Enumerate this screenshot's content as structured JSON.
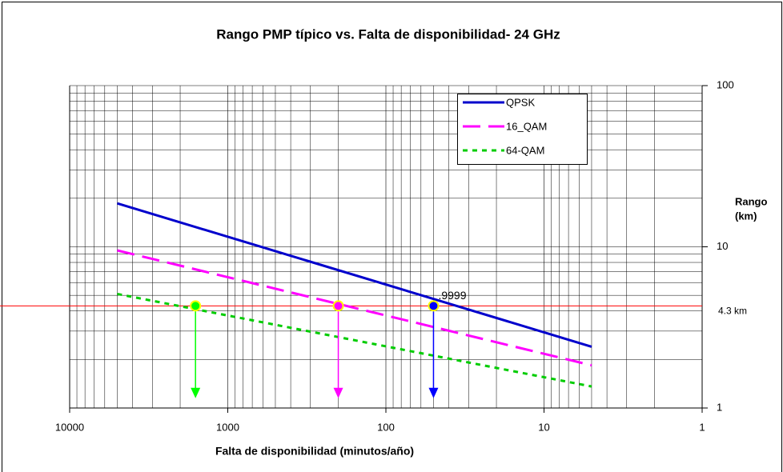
{
  "chart_data": {
    "type": "line",
    "title": "Rango PMP típico    vs. Falta de disponibilidad- 24 GHz",
    "xlabel": "Falta de disponibilidad (minutos/año)",
    "ylabel": [
      "Rango",
      "(km)"
    ],
    "x": [
      5000,
      5
    ],
    "series": [
      {
        "name": "QPSK",
        "color": "#0000cc",
        "dash": "solid",
        "values": [
          18.6,
          2.4
        ]
      },
      {
        "name": "16_QAM",
        "color": "#ff00ff",
        "dash": "dashed",
        "values": [
          9.5,
          1.84
        ]
      },
      {
        "name": "64-QAM",
        "color": "#00cc00",
        "dash": "dotted",
        "values": [
          5.1,
          1.36
        ]
      }
    ],
    "xscale": "log",
    "yscale": "log",
    "grid": true,
    "xlim": [
      10000,
      1
    ],
    "ylim": [
      1,
      100
    ],
    "xticks": [
      10000,
      1000,
      100,
      10,
      1
    ],
    "yticks": [
      1,
      10,
      100
    ],
    "hline": {
      "value": 4.3,
      "label": "4.3 km",
      "color": "#ff0000"
    },
    "markers": [
      {
        "x": 1600,
        "y": 4.3,
        "color": "#00ff00",
        "arrow_to": 1.15
      },
      {
        "x": 200,
        "y": 4.3,
        "color": "#ff00ff",
        "arrow_to": 1.15
      },
      {
        "x": 50,
        "y": 4.3,
        "color": "#0000ff",
        "arrow_to": 1.15,
        "label": ".9999"
      }
    ],
    "legend": "upper right"
  }
}
